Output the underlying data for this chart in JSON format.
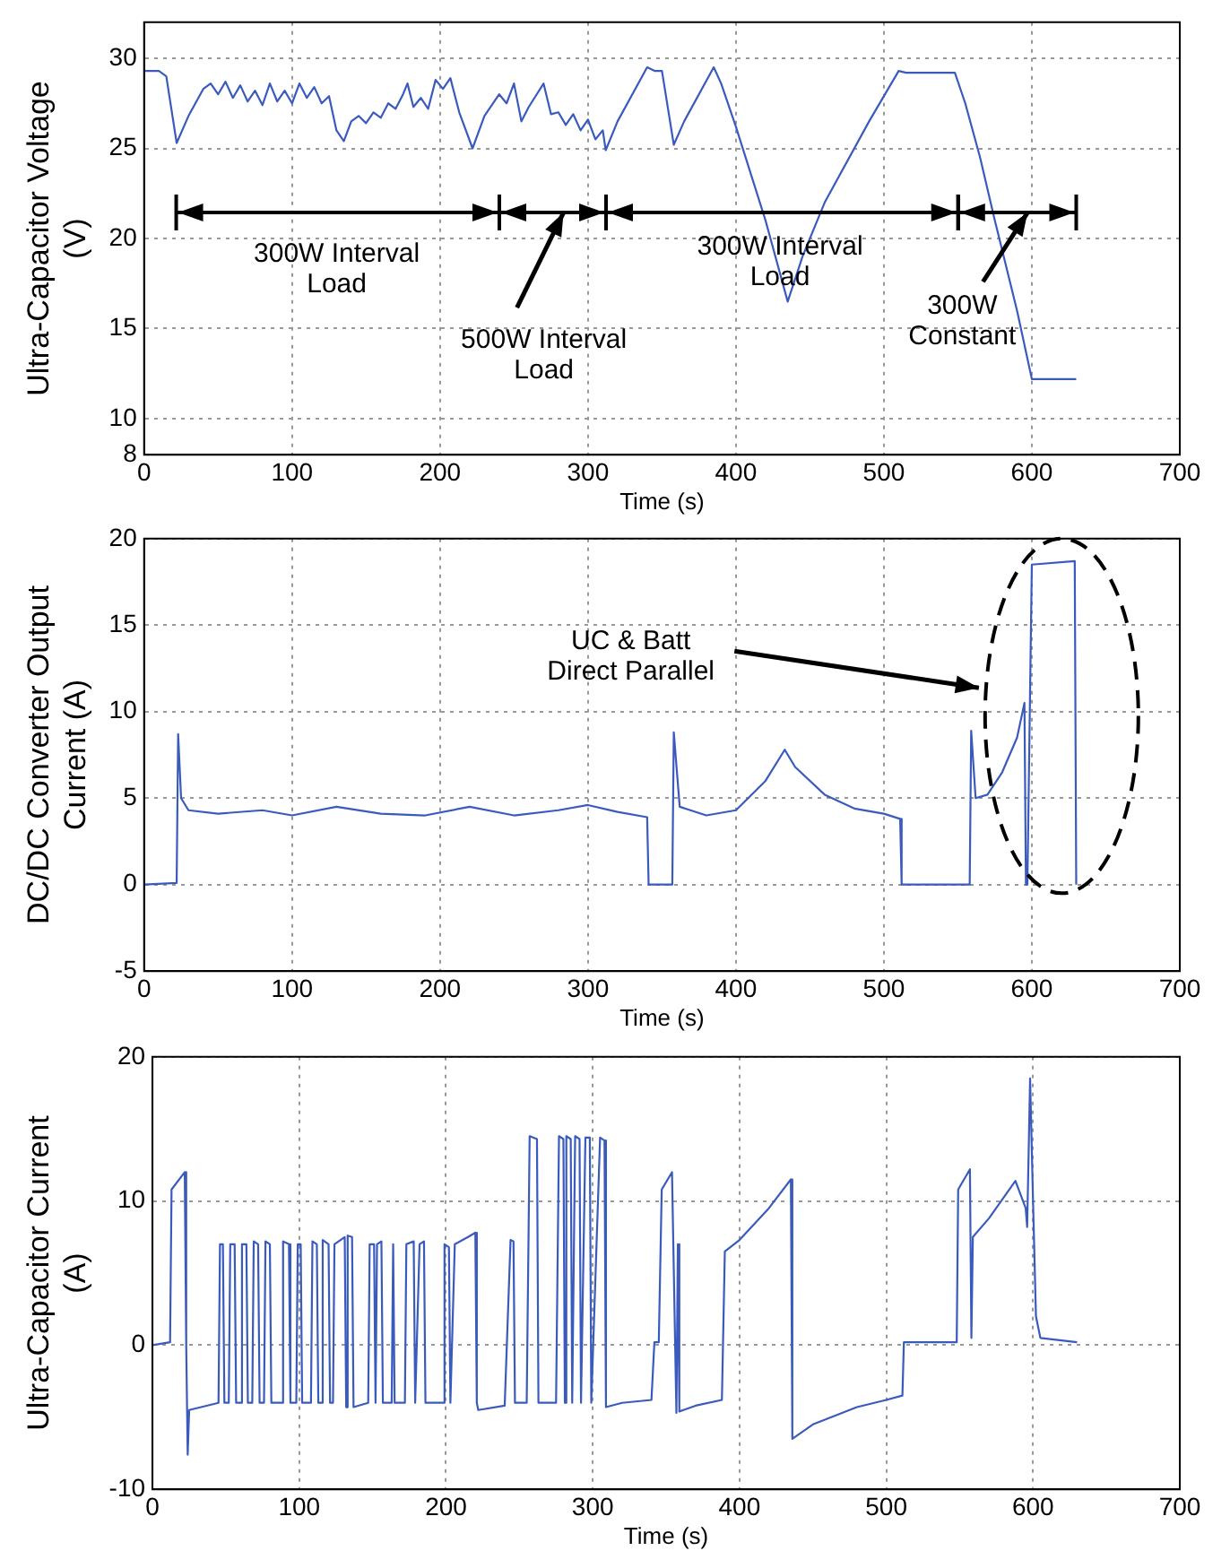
{
  "chart_data": [
    {
      "type": "line",
      "xlabel": "Time (s)",
      "ylabel": "Ultra-Capacitor Voltage (V)",
      "color": "#3a5bbd",
      "grid": true,
      "xlim": [
        0,
        700
      ],
      "xticks": [
        0,
        100,
        200,
        300,
        400,
        500,
        600,
        700
      ],
      "ylim": [
        8,
        32
      ],
      "yticks": [
        8,
        10,
        15,
        20,
        25,
        30
      ],
      "x": [
        0,
        10,
        15,
        22,
        30,
        40,
        45,
        50,
        55,
        60,
        65,
        70,
        75,
        80,
        85,
        90,
        95,
        100,
        105,
        110,
        115,
        120,
        125,
        130,
        135,
        140,
        145,
        150,
        155,
        160,
        165,
        170,
        175,
        178,
        182,
        187,
        192,
        197,
        202,
        207,
        213,
        222,
        230,
        240,
        245,
        250,
        255,
        260,
        270,
        275,
        280,
        285,
        290,
        295,
        300,
        305,
        310,
        312,
        320,
        340,
        345,
        350,
        358,
        365,
        385,
        390,
        400,
        420,
        435,
        445,
        460,
        490,
        510,
        515,
        548,
        555,
        565,
        575,
        590,
        600,
        615,
        630
      ],
      "values": [
        29.3,
        29.3,
        29,
        25.3,
        26.8,
        28.3,
        28.6,
        28,
        28.7,
        27.8,
        28.5,
        27.6,
        28.2,
        27.4,
        28.6,
        27.6,
        28.2,
        27.5,
        28.6,
        27.8,
        28.4,
        27.5,
        27.9,
        26,
        25.4,
        26.5,
        26.8,
        26.4,
        27,
        26.7,
        27.5,
        27.2,
        28,
        28.6,
        27.3,
        27.8,
        27.2,
        28.8,
        28.3,
        28.9,
        27,
        25,
        26.8,
        28,
        27.5,
        28.6,
        26.5,
        27.3,
        28.6,
        26.9,
        27,
        26.3,
        26.9,
        26,
        26.6,
        25.5,
        26,
        24.9,
        26.5,
        29.5,
        29.3,
        29.3,
        25.2,
        26.5,
        29.5,
        28.6,
        26.2,
        21,
        16.5,
        19,
        22,
        26.5,
        29.3,
        29.2,
        29.2,
        27.5,
        24.5,
        21,
        16,
        12.2,
        12.2,
        12.2
      ],
      "annotations": [
        "300W Interval Load",
        "500W Interval Load",
        "300W Interval Load",
        "300W Constant"
      ]
    },
    {
      "type": "line",
      "xlabel": "Time (s)",
      "ylabel": "DC/DC Converter Output Current (A)",
      "color": "#3a5bbd",
      "grid": true,
      "xlim": [
        0,
        700
      ],
      "xticks": [
        0,
        100,
        200,
        300,
        400,
        500,
        600,
        700
      ],
      "ylim": [
        -5,
        20
      ],
      "yticks": [
        -5,
        0,
        5,
        10,
        15,
        20
      ],
      "x": [
        0,
        22,
        23,
        25,
        30,
        50,
        80,
        100,
        130,
        160,
        190,
        220,
        250,
        280,
        300,
        320,
        340,
        341,
        357,
        358,
        362,
        380,
        400,
        420,
        433,
        440,
        460,
        480,
        500,
        511,
        512,
        558,
        559,
        562,
        570,
        580,
        590,
        595,
        596,
        597,
        600,
        629,
        630
      ],
      "values": [
        0,
        0.1,
        8.7,
        5,
        4.3,
        4.1,
        4.3,
        4,
        4.5,
        4.1,
        4,
        4.5,
        4,
        4.3,
        4.6,
        4.2,
        3.9,
        0,
        0,
        8.8,
        4.5,
        4,
        4.3,
        6,
        7.8,
        6.8,
        5.2,
        4.4,
        4.1,
        3.8,
        0,
        0,
        8.9,
        5,
        5.2,
        6.5,
        8.5,
        10.5,
        0,
        0,
        18.5,
        18.7,
        0
      ],
      "annotations": [
        "UC & Batt Direct Parallel"
      ]
    },
    {
      "type": "line",
      "xlabel": "Time (s)",
      "ylabel": "Ultra-Capacitor Current (A)",
      "color": "#3a5bbd",
      "grid": true,
      "xlim": [
        0,
        700
      ],
      "xticks": [
        0,
        100,
        200,
        300,
        400,
        500,
        600,
        700
      ],
      "ylim": [
        -10,
        20
      ],
      "yticks": [
        -10,
        0,
        10,
        20
      ],
      "x": [
        0,
        12,
        13,
        22,
        23,
        24,
        25,
        45,
        46,
        48,
        49,
        52,
        53,
        56,
        57,
        60,
        61,
        64,
        65,
        68,
        69,
        72,
        73,
        76,
        77,
        80,
        81,
        88,
        89,
        93,
        94,
        98,
        99,
        101,
        102,
        108,
        109,
        112,
        113,
        115,
        116,
        120,
        121,
        123,
        124,
        131,
        132,
        133,
        136,
        137,
        147,
        148,
        151,
        152,
        153,
        156,
        157,
        163,
        164,
        165,
        172,
        173,
        178,
        179,
        182,
        185,
        186,
        198,
        199,
        202,
        203,
        206,
        215,
        220,
        221,
        222,
        240,
        244,
        246,
        247,
        255,
        257,
        262,
        263,
        275,
        277,
        280,
        281,
        282,
        285,
        286,
        288,
        291,
        292,
        295,
        298,
        299,
        305,
        308,
        309,
        320,
        340,
        342,
        345,
        347,
        354,
        357,
        358,
        359,
        370,
        388,
        390,
        400,
        420,
        435,
        436,
        450,
        480,
        500,
        511,
        512,
        548,
        549,
        557,
        558,
        559,
        570,
        588,
        595,
        596,
        598,
        600,
        602,
        605,
        630
      ],
      "values": [
        0,
        0.2,
        10.8,
        12,
        0,
        -7.6,
        -4.5,
        -4,
        7,
        7,
        -4,
        -4,
        7,
        7,
        -4,
        -4,
        7,
        7,
        -4,
        -4,
        7.2,
        7,
        -4,
        -4,
        7.2,
        7,
        -4,
        -4,
        7.2,
        7,
        -4,
        -4,
        7,
        7,
        -4,
        -4,
        7.2,
        7,
        -4,
        -4,
        7.3,
        7,
        -4,
        -4,
        7,
        7.5,
        -4.3,
        7.6,
        7.5,
        -4.3,
        -4,
        7,
        7,
        -4,
        7,
        7.2,
        -4,
        -4,
        7,
        -4,
        -4,
        7,
        7.2,
        -4,
        7,
        7.2,
        -4,
        -4,
        7,
        6.8,
        -4,
        7,
        7.5,
        7.8,
        -4,
        -4.5,
        -4.2,
        7.3,
        7.2,
        -4,
        -4,
        14.5,
        14.3,
        -4,
        -4,
        14.5,
        14.3,
        -4,
        14.5,
        14.3,
        -4,
        14.5,
        14.3,
        -4,
        14.4,
        14.4,
        -4,
        14.4,
        14.2,
        -4.3,
        -4,
        -3.8,
        0.2,
        0.2,
        10.8,
        12,
        -4.7,
        7,
        -4.6,
        -4.2,
        -3.8,
        6.5,
        7.3,
        9.5,
        11.5,
        -6.5,
        -5.5,
        -4.3,
        -3.8,
        -3.5,
        0.2,
        0.2,
        10.8,
        12.2,
        0.5,
        7.5,
        8.8,
        11.4,
        9.5,
        8.2,
        18.5,
        10,
        2,
        0.5,
        0.2
      ]
    }
  ]
}
